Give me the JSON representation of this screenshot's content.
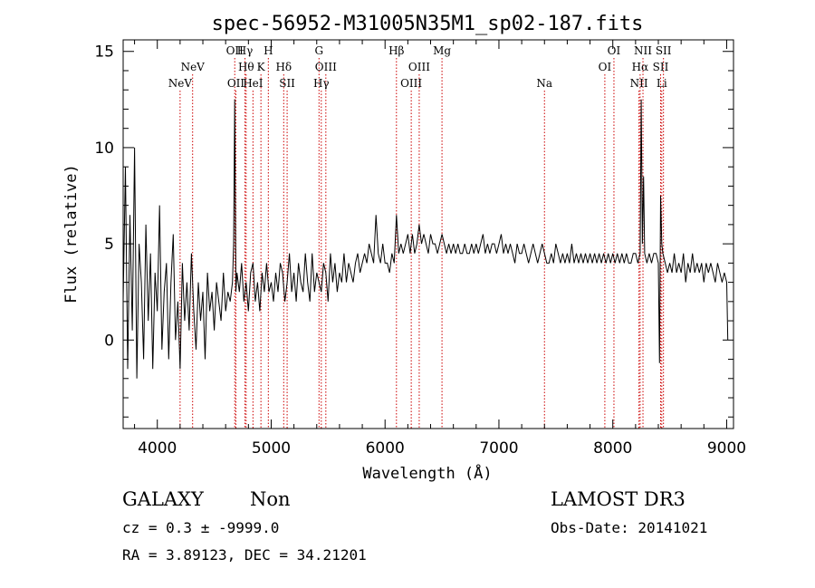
{
  "chart_data": {
    "type": "line",
    "title": "spec-56952-M31005N35M1_sp02-187.fits",
    "xlabel": "Wavelength (Å)",
    "ylabel": "Flux (relative)",
    "xlim": [
      3700,
      9060
    ],
    "ylim": [
      -4.6,
      15.6
    ],
    "xticks": [
      4000,
      5000,
      6000,
      7000,
      8000,
      9000
    ],
    "yticks": [
      0,
      5,
      10,
      15
    ],
    "grid": false,
    "line_color": "#000000",
    "marker_color": "#cc0000",
    "line_markers": [
      {
        "x": 4200,
        "row": 2,
        "labels": [
          "NeV"
        ]
      },
      {
        "x": 4310,
        "row": 1,
        "labels": [
          "NeV"
        ]
      },
      {
        "x": 4680,
        "row": 0,
        "labels": [
          "OII"
        ]
      },
      {
        "x": 4690,
        "row": 2,
        "labels": [
          "OII"
        ]
      },
      {
        "x": 4770,
        "row": 0,
        "labels": [
          "Hγ"
        ]
      },
      {
        "x": 4780,
        "row": 1,
        "labels": [
          "Hθ"
        ]
      },
      {
        "x": 4840,
        "row": 2,
        "labels": [
          "HeI"
        ]
      },
      {
        "x": 4910,
        "row": 1,
        "labels": [
          "K"
        ]
      },
      {
        "x": 4975,
        "row": 0,
        "labels": [
          "H"
        ]
      },
      {
        "x": 5110,
        "row": 1,
        "labels": [
          "Hδ"
        ]
      },
      {
        "x": 5140,
        "row": 2,
        "labels": [
          "SII"
        ]
      },
      {
        "x": 5420,
        "row": 0,
        "labels": [
          "G"
        ]
      },
      {
        "x": 5440,
        "row": 2,
        "labels": [
          "Hγ"
        ]
      },
      {
        "x": 5480,
        "row": 1,
        "labels": [
          "OIII"
        ]
      },
      {
        "x": 6100,
        "row": 0,
        "labels": [
          "Hβ"
        ]
      },
      {
        "x": 6230,
        "row": 2,
        "labels": [
          "OIII"
        ]
      },
      {
        "x": 6300,
        "row": 1,
        "labels": [
          "OIII"
        ]
      },
      {
        "x": 6500,
        "row": 0,
        "labels": [
          "Mg"
        ]
      },
      {
        "x": 7400,
        "row": 2,
        "labels": [
          "Na"
        ]
      },
      {
        "x": 7930,
        "row": 1,
        "labels": [
          "OI"
        ]
      },
      {
        "x": 8010,
        "row": 0,
        "labels": [
          "OI"
        ]
      },
      {
        "x": 8230,
        "row": 2,
        "labels": [
          "NII"
        ]
      },
      {
        "x": 8240,
        "row": 1,
        "labels": [
          "Hα"
        ]
      },
      {
        "x": 8265,
        "row": 0,
        "labels": [
          "NII"
        ]
      },
      {
        "x": 8420,
        "row": 1,
        "labels": [
          "SII"
        ]
      },
      {
        "x": 8430,
        "row": 2,
        "labels": [
          "Li"
        ]
      },
      {
        "x": 8445,
        "row": 0,
        "labels": [
          "SII"
        ]
      }
    ],
    "series": [
      {
        "x": [
          3700,
          3720,
          3740,
          3760,
          3780,
          3800,
          3820,
          3840,
          3860,
          3880,
          3900,
          3920,
          3940,
          3960,
          3980,
          4000,
          4020,
          4040,
          4060,
          4080,
          4100,
          4120,
          4140,
          4160,
          4180,
          4200,
          4220,
          4240,
          4260,
          4280,
          4300,
          4320,
          4340,
          4360,
          4380,
          4400,
          4420,
          4440,
          4460,
          4480,
          4500,
          4520,
          4540,
          4560,
          4580,
          4600,
          4620,
          4640,
          4660,
          4670,
          4680,
          4690,
          4700,
          4720,
          4740,
          4760,
          4780,
          4800,
          4820,
          4840,
          4860,
          4880,
          4900,
          4920,
          4940,
          4960,
          4980,
          5000,
          5020,
          5040,
          5060,
          5080,
          5100,
          5120,
          5140,
          5160,
          5180,
          5200,
          5220,
          5240,
          5260,
          5280,
          5300,
          5320,
          5340,
          5360,
          5380,
          5400,
          5420,
          5440,
          5460,
          5480,
          5500,
          5520,
          5540,
          5560,
          5580,
          5600,
          5620,
          5640,
          5660,
          5680,
          5700,
          5720,
          5740,
          5760,
          5780,
          5800,
          5820,
          5840,
          5860,
          5880,
          5900,
          5920,
          5940,
          5960,
          5980,
          6000,
          6020,
          6040,
          6060,
          6080,
          6100,
          6120,
          6140,
          6160,
          6180,
          6200,
          6220,
          6240,
          6260,
          6280,
          6300,
          6320,
          6340,
          6360,
          6380,
          6400,
          6420,
          6440,
          6460,
          6480,
          6500,
          6520,
          6540,
          6560,
          6580,
          6600,
          6620,
          6640,
          6660,
          6680,
          6700,
          6720,
          6740,
          6760,
          6780,
          6800,
          6820,
          6840,
          6860,
          6880,
          6900,
          6920,
          6940,
          6960,
          6980,
          7000,
          7020,
          7040,
          7060,
          7080,
          7100,
          7120,
          7140,
          7160,
          7180,
          7200,
          7220,
          7240,
          7260,
          7280,
          7300,
          7320,
          7340,
          7360,
          7380,
          7400,
          7420,
          7440,
          7460,
          7480,
          7500,
          7520,
          7540,
          7560,
          7580,
          7600,
          7620,
          7640,
          7660,
          7680,
          7700,
          7720,
          7740,
          7760,
          7780,
          7800,
          7820,
          7840,
          7860,
          7880,
          7900,
          7920,
          7940,
          7960,
          7980,
          8000,
          8020,
          8040,
          8060,
          8080,
          8100,
          8120,
          8140,
          8160,
          8180,
          8200,
          8220,
          8240,
          8250,
          8260,
          8270,
          8280,
          8300,
          8320,
          8340,
          8360,
          8380,
          8400,
          8410,
          8420,
          8430,
          8440,
          8460,
          8480,
          8500,
          8520,
          8540,
          8560,
          8580,
          8600,
          8620,
          8640,
          8660,
          8680,
          8700,
          8720,
          8740,
          8760,
          8780,
          8800,
          8820,
          8840,
          8860,
          8880,
          8900,
          8920,
          8940,
          8960,
          8980,
          9000,
          9010
        ],
        "y": [
          2.0,
          9.0,
          -1.5,
          6.5,
          0.5,
          10.0,
          -2.0,
          5.0,
          3.0,
          -1.0,
          6.0,
          1.0,
          4.5,
          -1.5,
          3.5,
          1.5,
          7.0,
          -0.5,
          2.5,
          4.0,
          -1.0,
          3.0,
          5.5,
          0.0,
          2.0,
          -1.5,
          4.0,
          1.0,
          3.0,
          0.5,
          4.5,
          1.5,
          -0.5,
          3.0,
          1.0,
          2.5,
          -1.0,
          3.5,
          1.5,
          2.5,
          0.5,
          3.0,
          2.0,
          1.0,
          3.5,
          1.5,
          2.5,
          2.0,
          3.0,
          5.0,
          12.5,
          2.5,
          3.5,
          2.5,
          4.0,
          2.0,
          3.0,
          1.5,
          3.5,
          4.0,
          2.0,
          3.0,
          1.5,
          3.5,
          2.5,
          4.0,
          2.5,
          3.0,
          2.0,
          3.5,
          2.5,
          4.0,
          3.5,
          2.0,
          3.0,
          4.5,
          2.5,
          3.5,
          2.0,
          4.0,
          3.0,
          2.5,
          4.5,
          3.0,
          2.0,
          4.5,
          2.5,
          3.5,
          3.0,
          2.5,
          4.0,
          3.5,
          2.0,
          4.5,
          3.0,
          4.0,
          2.5,
          3.5,
          3.0,
          4.5,
          3.0,
          4.0,
          3.5,
          3.0,
          4.0,
          4.5,
          3.5,
          4.0,
          4.5,
          4.0,
          5.0,
          4.5,
          4.0,
          6.5,
          4.5,
          4.0,
          5.0,
          4.0,
          4.0,
          3.5,
          4.5,
          4.0,
          6.5,
          4.5,
          5.0,
          4.5,
          5.0,
          5.5,
          4.5,
          5.5,
          4.5,
          5.0,
          6.0,
          5.0,
          5.5,
          5.0,
          4.5,
          5.5,
          5.0,
          5.0,
          4.5,
          5.0,
          5.5,
          5.0,
          4.5,
          5.0,
          4.5,
          5.0,
          4.5,
          5.0,
          4.5,
          4.5,
          5.0,
          4.5,
          4.5,
          5.0,
          4.5,
          5.0,
          4.5,
          5.0,
          5.5,
          4.5,
          5.0,
          4.5,
          5.0,
          5.0,
          4.5,
          5.0,
          5.5,
          4.5,
          5.0,
          4.5,
          5.0,
          4.5,
          4.0,
          5.0,
          4.5,
          4.5,
          5.0,
          4.5,
          4.0,
          4.5,
          5.0,
          4.5,
          4.0,
          4.5,
          5.0,
          4.5,
          4.0,
          4.0,
          4.5,
          4.0,
          5.0,
          4.5,
          4.0,
          4.5,
          4.0,
          4.5,
          4.0,
          5.0,
          4.0,
          4.5,
          4.0,
          4.5,
          4.0,
          4.5,
          4.0,
          4.5,
          4.0,
          4.5,
          4.0,
          4.5,
          4.0,
          4.5,
          4.0,
          4.5,
          4.0,
          4.5,
          4.0,
          4.5,
          4.0,
          4.5,
          4.0,
          4.5,
          4.0,
          4.0,
          4.5,
          4.5,
          4.0,
          4.5,
          12.5,
          5.0,
          8.5,
          4.5,
          4.0,
          4.5,
          4.0,
          4.5,
          4.5,
          4.0,
          -1.2,
          7.5,
          5.0,
          4.5,
          4.0,
          3.5,
          4.0,
          3.5,
          4.5,
          3.5,
          4.0,
          3.5,
          4.5,
          3.0,
          4.0,
          3.5,
          4.5,
          3.5,
          4.0,
          3.5,
          4.0,
          3.0,
          4.0,
          3.5,
          4.0,
          3.5,
          3.0,
          4.0,
          3.5,
          3.0,
          3.5,
          3.0,
          0.0
        ]
      }
    ]
  },
  "footer": {
    "class_label": "GALAXY",
    "subclass_label": "Non",
    "survey_label": "LAMOST DR3",
    "redshift_line": "cz = 0.3 ± -9999.0",
    "obs_date_line": "Obs-Date: 20141021",
    "coords_line": "RA =   3.89123, DEC =  34.21201"
  }
}
